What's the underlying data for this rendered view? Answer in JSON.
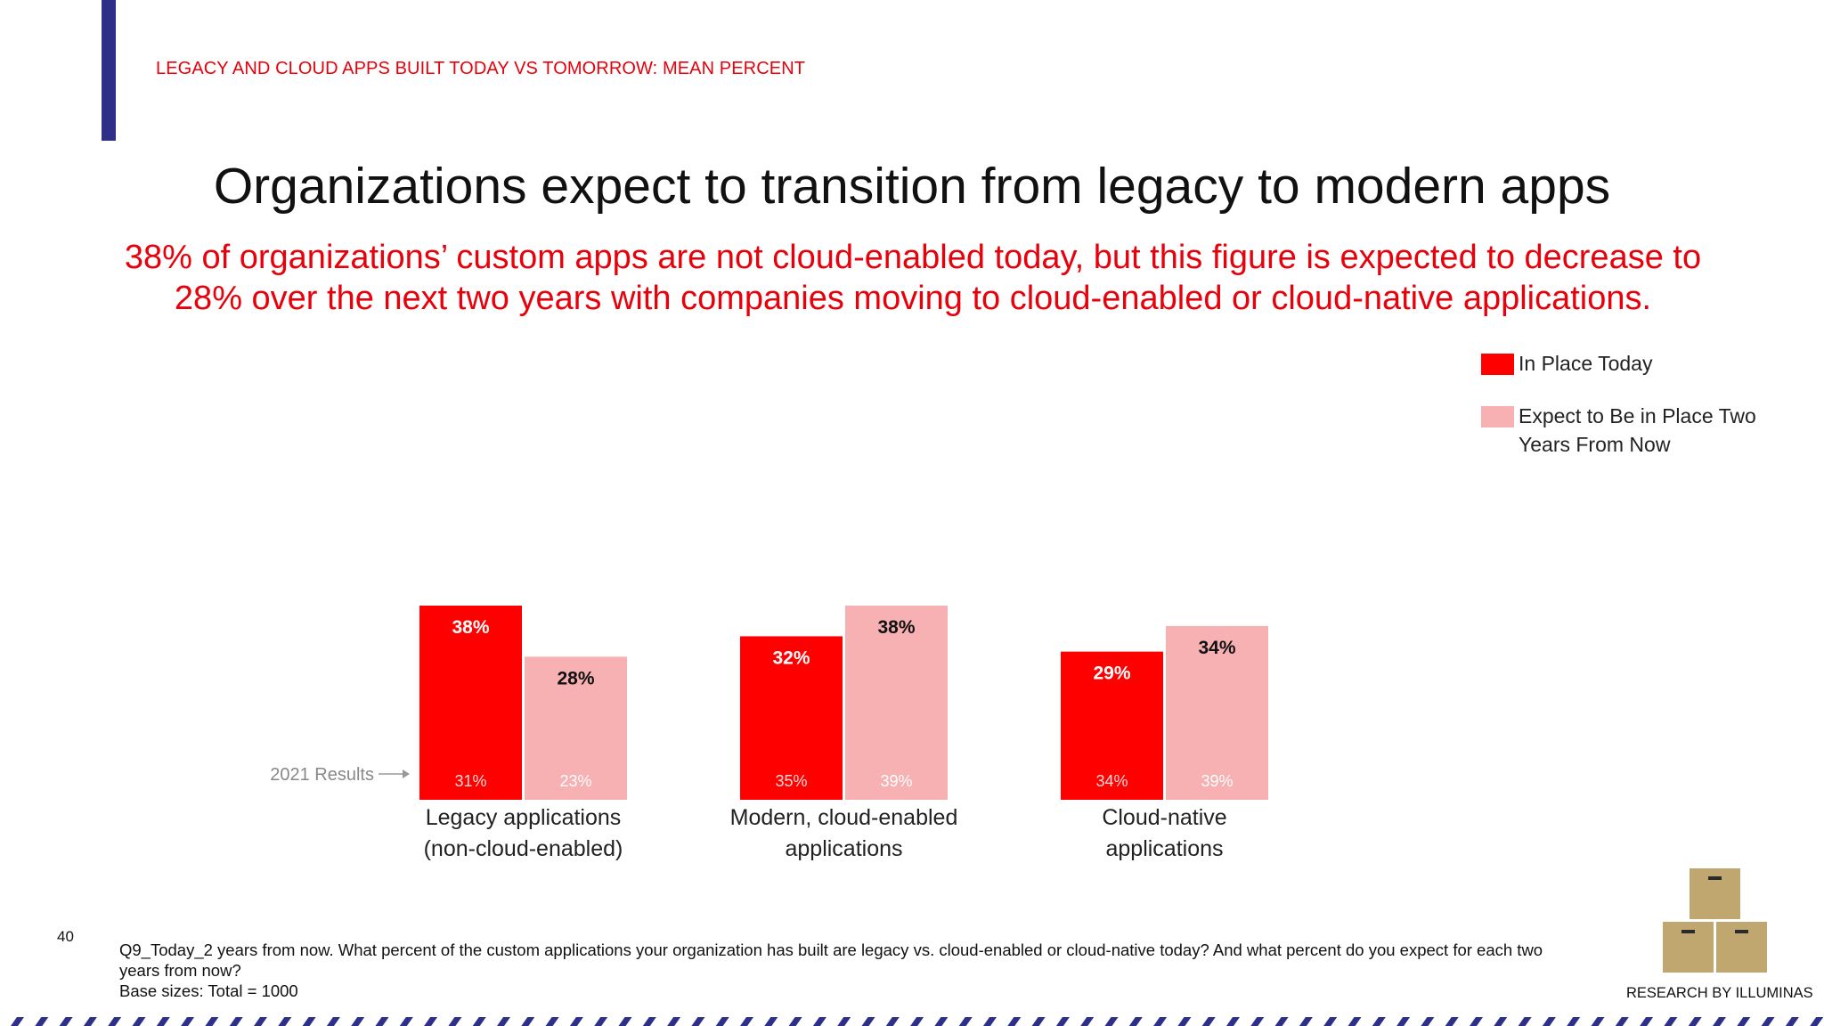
{
  "header": {
    "section_label": "LEGACY AND CLOUD APPS BUILT TODAY VS TOMORROW: MEAN PERCENT",
    "title": "Organizations expect to transition from legacy to modern apps",
    "subtitle_line1": "38% of organizations’ custom apps are not cloud-enabled today, but this figure is expected to decrease to",
    "subtitle_line2": "28% over the next two years with companies moving to cloud-enabled or cloud-native applications."
  },
  "legend": {
    "today_label": "In Place Today",
    "future_label_line1": "Expect to Be in Place Two",
    "future_label_line2": "Years From Now"
  },
  "colors": {
    "today": "#ff0000",
    "future": "#f8b1b2",
    "accent_red": "#e8000b",
    "navy": "#2e2f86",
    "box": "#bfa76f"
  },
  "chart_data": {
    "type": "bar",
    "categories": [
      [
        "Legacy applications",
        "(non-cloud-enabled)"
      ],
      [
        "Modern, cloud-enabled",
        "applications"
      ],
      [
        "Cloud-native",
        "applications"
      ]
    ],
    "series": [
      {
        "name": "In Place Today",
        "values": [
          38,
          32,
          29
        ],
        "labels": [
          "38%",
          "32%",
          "29%"
        ],
        "results_2021": [
          "31%",
          "35%",
          "34%"
        ]
      },
      {
        "name": "Expect to Be in Place Two Years From Now",
        "values": [
          28,
          38,
          34
        ],
        "labels": [
          "28%",
          "38%",
          "34%"
        ],
        "results_2021": [
          "23%",
          "39%",
          "39%"
        ]
      }
    ],
    "annotation": "2021 Results",
    "ylim": [
      0,
      38
    ]
  },
  "footer": {
    "page_number": "40",
    "question_line1": "Q9_Today_2 years from now. What percent of the custom applications your organization has built are legacy vs. cloud-enabled or cloud-native today? And what percent do you expect for each two",
    "question_line2": "years from now?",
    "base_sizes": "Base sizes: Total = 1000",
    "brand": "RESEARCH BY ILLUMINAS"
  }
}
